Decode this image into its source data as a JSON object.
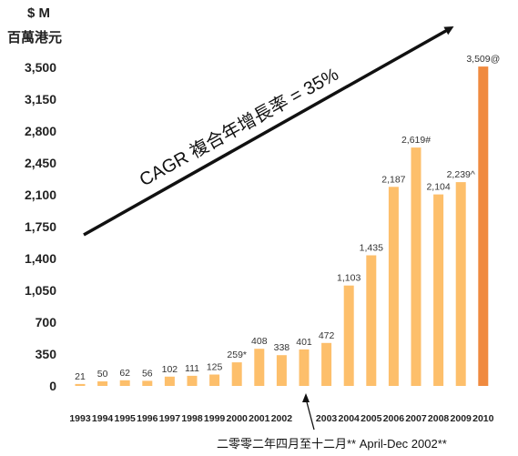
{
  "chart_data": {
    "type": "bar",
    "ylabel_line1": "$ M",
    "ylabel_line2": "百萬港元",
    "ylim": [
      0,
      3500
    ],
    "yticks": [
      {
        "v": 0,
        "label": "0"
      },
      {
        "v": 350,
        "label": "350"
      },
      {
        "v": 700,
        "label": "700"
      },
      {
        "v": 1050,
        "label": "1,050"
      },
      {
        "v": 1400,
        "label": "1,400"
      },
      {
        "v": 1750,
        "label": "1,750"
      },
      {
        "v": 2100,
        "label": "2,100"
      },
      {
        "v": 2450,
        "label": "2,450"
      },
      {
        "v": 2800,
        "label": "2,800"
      },
      {
        "v": 3150,
        "label": "3,150"
      },
      {
        "v": 3500,
        "label": "3,500"
      }
    ],
    "categories": [
      "1993",
      "1994",
      "1995",
      "1996",
      "1997",
      "1998",
      "1999",
      "2000",
      "2001",
      "2002",
      "2002",
      "2003",
      "2004",
      "2005",
      "2006",
      "2007",
      "2008",
      "2009",
      "2010"
    ],
    "values": [
      21,
      50,
      62,
      56,
      102,
      111,
      125,
      259,
      408,
      338,
      401,
      472,
      1103,
      1435,
      2187,
      2619,
      2104,
      2239,
      3509
    ],
    "value_labels": [
      "21",
      "50",
      "62",
      "56",
      "102",
      "111",
      "125",
      "259*",
      "408",
      "338",
      "401",
      "472",
      "1,103",
      "1,435",
      "2,187",
      "2,619#",
      "2,104",
      "2,239^",
      "3,509@"
    ],
    "tick_labels": [
      "1993",
      "1994",
      "1995",
      "1996",
      "1997",
      "1998",
      "1999",
      "2000",
      "2001",
      "2002",
      "",
      "2003",
      "2004",
      "2005",
      "2006",
      "2007",
      "2008",
      "2009",
      "2010"
    ],
    "highlight_index": 18,
    "colors": {
      "bar": "#FDBF6B",
      "highlight": "#F08A3F",
      "arrow": "#111111"
    },
    "annotations": {
      "cagr": "CAGR 複合年增長率 = 35%",
      "note": "二零零二年四月至十二月** April-Dec 2002**"
    },
    "grid": false
  }
}
